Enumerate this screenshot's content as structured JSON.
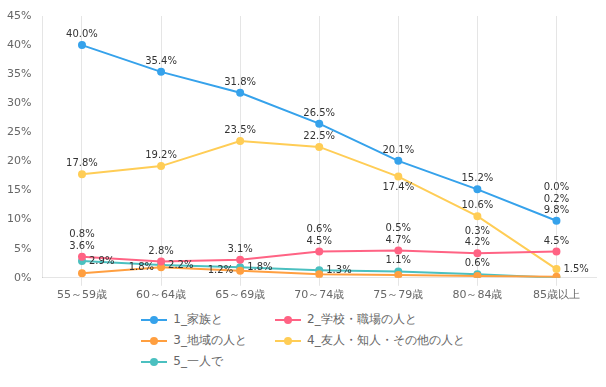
{
  "chart_data": {
    "type": "line",
    "categories": [
      "55～59歳",
      "60～64歳",
      "65～69歳",
      "70～74歳",
      "75～79歳",
      "80～84歳",
      "85歳以上"
    ],
    "series": [
      {
        "name": "1_家族と",
        "values": [
          40.0,
          35.4,
          31.8,
          26.5,
          20.1,
          15.2,
          9.8
        ],
        "value_labels": [
          "40.0%",
          "35.4%",
          "31.8%",
          "26.5%",
          "20.1%",
          "15.2%",
          "9.8%"
        ]
      },
      {
        "name": "2_学校・職場の人と",
        "values": [
          3.6,
          2.8,
          3.1,
          4.5,
          4.7,
          4.2,
          4.5
        ],
        "value_labels": [
          "3.6%",
          "2.8%",
          "3.1%",
          "4.5%",
          "4.7%",
          "4.2%",
          "4.5%"
        ]
      },
      {
        "name": "3_地域の人と",
        "values": [
          0.8,
          1.8,
          1.2,
          0.6,
          0.5,
          0.3,
          0.2
        ],
        "value_labels": [
          "0.8%",
          "1.8%",
          "1.2%",
          "0.6%",
          "0.5%",
          "0.3%",
          "0.2%"
        ]
      },
      {
        "name": "4_友人・知人・その他の人と",
        "values": [
          17.8,
          19.2,
          23.5,
          22.5,
          17.4,
          10.6,
          1.5
        ],
        "value_labels": [
          "17.8%",
          "19.2%",
          "23.5%",
          "22.5%",
          "17.4%",
          "10.6%",
          "1.5%"
        ]
      },
      {
        "name": "5_一人で",
        "values": [
          2.9,
          2.2,
          1.8,
          1.3,
          1.1,
          0.6,
          0.0
        ],
        "value_labels": [
          "2.9%",
          "2.2%",
          "1.8%",
          "1.3%",
          "1.1%",
          "0.6%",
          "0.0%"
        ]
      }
    ],
    "ylim": [
      0,
      45
    ],
    "yticks": [
      {
        "value": 0,
        "label": "0%"
      },
      {
        "value": 5,
        "label": "5%"
      },
      {
        "value": 10,
        "label": "10%"
      },
      {
        "value": 15,
        "label": "15%"
      },
      {
        "value": 20,
        "label": "20%"
      },
      {
        "value": 25,
        "label": "25%"
      },
      {
        "value": 30,
        "label": "30%"
      },
      {
        "value": 35,
        "label": "35%"
      },
      {
        "value": 40,
        "label": "40%"
      },
      {
        "value": 45,
        "label": "45%"
      }
    ],
    "grid": "x",
    "legend": "bottom",
    "data_labels": true,
    "marker": "circle",
    "line_style": "solid"
  }
}
